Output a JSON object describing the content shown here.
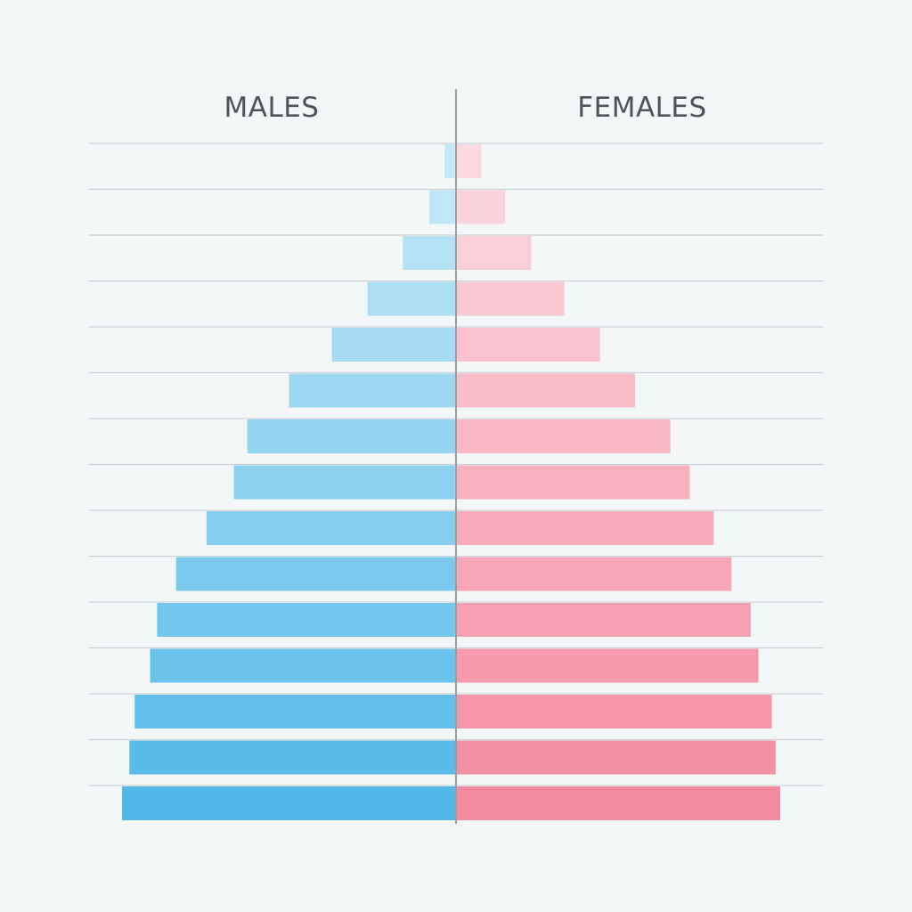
{
  "chart_data": {
    "type": "bar",
    "subtype": "population-pyramid",
    "orientation": "horizontal",
    "title": "",
    "xlabel": "",
    "ylabel": "",
    "grid": true,
    "legend": "none",
    "headers": {
      "left": "MALES",
      "right": "FEMALES"
    },
    "order": "top-to-bottom",
    "xlim": [
      0,
      100
    ],
    "series": [
      {
        "side": "left",
        "values": [
          3.4,
          8.0,
          15.9,
          26.5,
          37.2,
          50.0,
          62.5,
          66.5,
          74.7,
          83.8,
          89.5,
          91.6,
          96.2,
          97.8,
          100.0
        ]
      },
      {
        "side": "right",
        "values": [
          7.8,
          15.2,
          23.2,
          33.4,
          44.4,
          55.2,
          66.1,
          72.1,
          79.5,
          85.0,
          90.9,
          93.3,
          97.4,
          98.6,
          100.0
        ]
      }
    ],
    "colors": {
      "left_top": "#c6e9f7",
      "left_bottom": "#52b8e8",
      "right_top": "#fbd9e1",
      "right_bottom": "#f38a9e",
      "grid": "#cdd3d7",
      "axis": "#9aa0a5",
      "background": "#f3f7f8"
    }
  }
}
